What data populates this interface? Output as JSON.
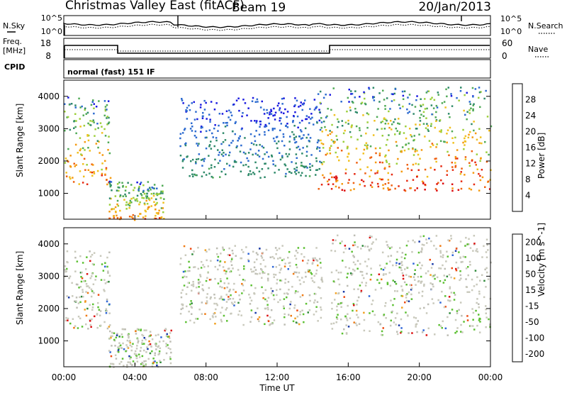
{
  "header": {
    "station": "Christmas Valley East (fitACF)",
    "beam": "Beam 19",
    "date": "20/Jan/2013"
  },
  "strip_sky": {
    "left_label": "N.Sky",
    "left_ticks": [
      "10^5",
      "10^0"
    ],
    "right_label": "N.Search",
    "right_ticks": [
      "10^5",
      "10^0"
    ]
  },
  "strip_freq": {
    "left_label_1": "Freq.",
    "left_label_2": "[MHz]",
    "left_ticks": [
      "18",
      "8"
    ],
    "right_label": "Nave",
    "right_ticks": [
      "60",
      "0"
    ]
  },
  "cpid": {
    "label": "CPID",
    "mode": "normal (fast) 151 IF"
  },
  "time_axis": {
    "ticks": [
      "00:00",
      "04:00",
      "08:00",
      "12:00",
      "16:00",
      "20:00",
      "00:00"
    ],
    "label": "Time UT"
  },
  "colors": {
    "power_scale": [
      "#1a1ae0",
      "#2d6bd0",
      "#2f8a6a",
      "#4faa56",
      "#9ccf3a",
      "#f0c020",
      "#f59a10",
      "#ef6010",
      "#e52a12",
      "#dd0d0d"
    ],
    "velocity_scale": [
      "#1a3aa8",
      "#2f66d8",
      "#2f8a3a",
      "#5cc032",
      "#c9c9bc",
      "#bdbdb4",
      "#f1a020",
      "#ef7a12",
      "#ee4a10",
      "#dd1010"
    ],
    "noise_solid": "#000000",
    "noise_dotted": "#000000"
  },
  "chart_data": [
    {
      "type": "heatmap",
      "title": "",
      "xlabel": "",
      "ylabel": "Slant Range [km]",
      "y_ticks": [
        "1000",
        "2000",
        "3000",
        "4000"
      ],
      "xlim": [
        0,
        24
      ],
      "ylim": [
        200,
        4500
      ],
      "colorbar": {
        "label": "Power [dB]",
        "ticks": [
          "4",
          "8",
          "12",
          "16",
          "20",
          "24",
          "28"
        ],
        "range": [
          0,
          30
        ]
      },
      "regions": [
        {
          "name": "early-evening-arc",
          "t": [
            0.0,
            2.6
          ],
          "range_km": [
            1300,
            4000
          ],
          "peak_db": 28
        },
        {
          "name": "near-range-echo",
          "t": [
            2.5,
            5.6
          ],
          "range_km": [
            200,
            1400
          ],
          "peak_db": 28
        },
        {
          "name": "night-high-range",
          "t": [
            6.5,
            14.5
          ],
          "range_km": [
            1500,
            4000
          ],
          "peak_db": 10
        },
        {
          "name": "dawn-arc",
          "t": [
            14.2,
            24.0
          ],
          "range_km": [
            1100,
            4300
          ],
          "peak_db": 30
        }
      ]
    },
    {
      "type": "heatmap",
      "title": "",
      "xlabel": "Time UT",
      "ylabel": "Slant Range [km]",
      "y_ticks": [
        "1000",
        "2000",
        "3000",
        "4000"
      ],
      "xlim": [
        0,
        24
      ],
      "ylim": [
        200,
        4500
      ],
      "colorbar": {
        "label": "Velocity [m s^-1]",
        "ticks": [
          "200",
          "100",
          "50",
          "15",
          "-15",
          "-50",
          "-100",
          "-200"
        ],
        "range": [
          -250,
          250
        ]
      },
      "regions": [
        {
          "name": "ground-scatter-early",
          "t": [
            0.0,
            2.6
          ],
          "range_km": [
            1400,
            3800
          ],
          "v_ms": 0
        },
        {
          "name": "near-range-flow",
          "t": [
            2.5,
            6.0
          ],
          "range_km": [
            200,
            1400
          ],
          "v_ms": 40
        },
        {
          "name": "night-scatter",
          "t": [
            6.5,
            14.5
          ],
          "range_km": [
            1500,
            4000
          ],
          "v_ms": 0
        },
        {
          "name": "dawn-ground-scatter",
          "t": [
            15.0,
            24.0
          ],
          "range_km": [
            1200,
            4300
          ],
          "v_ms": 0
        }
      ]
    }
  ]
}
